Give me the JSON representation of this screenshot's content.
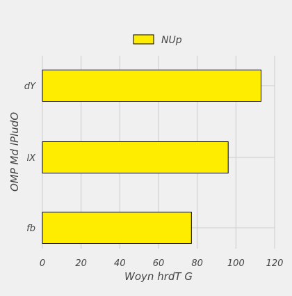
{
  "chart_data": {
    "type": "bar",
    "orientation": "horizontal",
    "categories": [
      "fb",
      "lX",
      "dY"
    ],
    "series": [
      {
        "name": "NUp",
        "values": [
          77,
          96,
          113
        ],
        "color": "#ffed00"
      }
    ],
    "xlabel": "Woyn hrdT G",
    "ylabel": "OMP Md lPludO",
    "xlim": [
      0,
      120
    ],
    "xticks": [
      0,
      20,
      40,
      60,
      80,
      100,
      120
    ],
    "grid": true,
    "legend": "top-center",
    "bar_edge_color": "#000000",
    "background_color": "#f0f0f0",
    "grid_color": "#cbcbcb"
  }
}
